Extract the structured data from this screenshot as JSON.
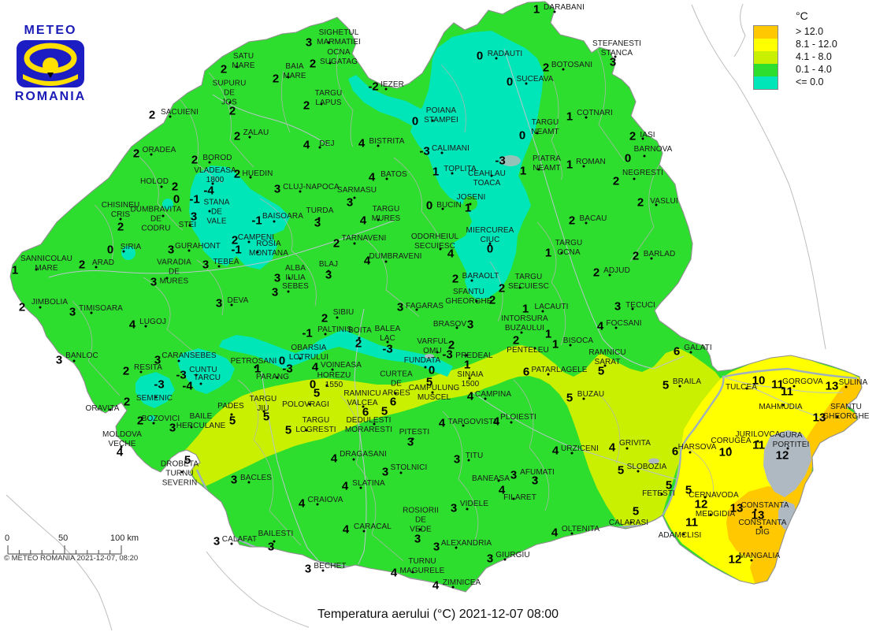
{
  "logo": {
    "top": "METEO",
    "bottom": "ROMANIA"
  },
  "legend": {
    "title": "°C",
    "items": [
      {
        "label": "> 12.0",
        "color": "#FFC800"
      },
      {
        "label": "8.1 - 12.0",
        "color": "#FFFF00"
      },
      {
        "label": "4.1 - 8.0",
        "color": "#C8F000"
      },
      {
        "label": "0.1 - 4.0",
        "color": "#2EDE2E"
      },
      {
        "label": "<= 0.0",
        "color": "#00E6B9"
      }
    ]
  },
  "scalebar": {
    "tick_labels": [
      "0",
      "50",
      "100 km"
    ]
  },
  "copyright": "© METEO ROMANIA 2021-12-07, 08:20",
  "caption": "Temperatura aerului (°C) 2021-12-07 08:00",
  "map": {
    "colors": {
      "green": "#2EDE2E",
      "cyan": "#00E6B9",
      "yellowgreen": "#C8F000",
      "yellow": "#FFFF00",
      "orange": "#FFC800",
      "water": "#AEB9C2"
    },
    "station_fields": [
      "name",
      "temp_c",
      "temp_x",
      "temp_y",
      "label_x",
      "label_y"
    ],
    "stations": [
      [
        "SIGHETUL\nMARMATIEI",
        "3",
        392,
        54,
        430,
        48
      ],
      [
        "OCNA\nSUGATAG",
        "2",
        397,
        81,
        430,
        73
      ],
      [
        "SATU\nMARE",
        "2",
        284,
        88,
        309,
        78
      ],
      [
        "BAIA\nMARE",
        "2",
        350,
        100,
        374,
        91
      ],
      [
        "SUPURU\nDE\nJOS",
        "2",
        295,
        141,
        291,
        118
      ],
      [
        "TARGU\nLAPUS",
        "2",
        389,
        134,
        417,
        125
      ],
      [
        "SACUIENI",
        "2",
        193,
        146,
        228,
        143
      ],
      [
        "ZALAU",
        "2",
        301,
        173,
        325,
        169
      ],
      [
        "DEJ",
        "4",
        389,
        184,
        415,
        183
      ],
      [
        "ORADEA",
        "2",
        173,
        195,
        202,
        191
      ],
      [
        "BOROD",
        "2",
        247,
        203,
        276,
        201
      ],
      [
        "VLADEASA\n1800",
        "-4",
        265,
        242,
        273,
        223
      ],
      [
        "HUEDIN",
        "2",
        301,
        221,
        327,
        221
      ],
      [
        "IEZER",
        "-2",
        474,
        110,
        498,
        108
      ],
      [
        "POIANA\nSTAMPEI",
        "0",
        527,
        154,
        560,
        147
      ],
      [
        "RADAUTI",
        "0",
        609,
        71,
        641,
        69
      ],
      [
        "SUCEAVA",
        "0",
        647,
        104,
        679,
        101
      ],
      [
        "DARABANI",
        "1",
        681,
        12,
        716,
        10
      ],
      [
        "STEFANESTI\nSTANCA",
        "3",
        778,
        79,
        783,
        62
      ],
      [
        "BOTOSANI",
        "2",
        693,
        86,
        726,
        83
      ],
      [
        "COTNARI",
        "1",
        723,
        148,
        755,
        144
      ],
      [
        "TARGU\nNEAMT",
        "0",
        663,
        172,
        692,
        162
      ],
      [
        "IASI",
        "2",
        803,
        173,
        822,
        172
      ],
      [
        "BARNOVA",
        "0",
        797,
        201,
        829,
        190
      ],
      [
        "PIATRA\nNEAMT",
        "1",
        664,
        217,
        694,
        208
      ],
      [
        "ROMAN",
        "1",
        723,
        209,
        750,
        206
      ],
      [
        "NEGRESTI",
        "2",
        782,
        230,
        816,
        220
      ],
      [
        "VASLUI",
        "2",
        813,
        257,
        843,
        256
      ],
      [
        "BISTRITA",
        "4",
        459,
        182,
        491,
        180
      ],
      [
        "CALIMANI",
        "-3",
        539,
        192,
        572,
        189
      ],
      [
        "TOPLITA",
        "1",
        553,
        218,
        584,
        215
      ],
      [
        "CEAHLAU\nTOACA",
        "-3",
        635,
        204,
        618,
        227
      ],
      [
        "JOSENI",
        "1",
        594,
        264,
        598,
        251
      ],
      [
        "BUCIN",
        "0",
        545,
        261,
        570,
        261
      ],
      [
        "BACAU",
        "2",
        726,
        280,
        753,
        278
      ],
      [
        "MIERCUREA\nCIUC",
        "0",
        622,
        316,
        622,
        299
      ],
      [
        "TARGU\nOCNA",
        "1",
        696,
        321,
        722,
        315
      ],
      [
        "ADJUD",
        "2",
        757,
        346,
        783,
        344
      ],
      [
        "BARLAD",
        "2",
        807,
        325,
        837,
        323
      ],
      [
        "HOLOD",
        "2",
        222,
        237,
        196,
        231
      ],
      [
        "DUMBRAVITA\nDE\nCODRU",
        "0",
        224,
        253,
        198,
        278
      ],
      [
        "CHISINEU\nCRIS",
        "2",
        153,
        288,
        153,
        267
      ],
      [
        "STEI",
        "3",
        246,
        275,
        238,
        286
      ],
      [
        "STANA\nDE\nVALE",
        "-1",
        247,
        253,
        275,
        269
      ],
      [
        "SIRIA",
        "0",
        140,
        317,
        166,
        314
      ],
      [
        "ARAD",
        "2",
        104,
        336,
        131,
        334
      ],
      [
        "SANNICOLAU\nMARE",
        "1",
        19,
        343,
        59,
        335
      ],
      [
        "GURAHONT",
        "3",
        217,
        317,
        251,
        313
      ],
      [
        "VARADIA\nDE\nMURES",
        "3",
        195,
        358,
        221,
        345
      ],
      [
        "TEBEA",
        "3",
        261,
        336,
        287,
        333
      ],
      [
        "JIMBOLIA",
        "2",
        28,
        390,
        63,
        384
      ],
      [
        "TIMISOARA",
        "3",
        92,
        396,
        128,
        392
      ],
      [
        "CLUJ-NAPOCA",
        "3",
        352,
        240,
        395,
        238
      ],
      [
        "BATOS",
        "4",
        472,
        225,
        500,
        222
      ],
      [
        "SARMASU",
        "3",
        444,
        257,
        453,
        242
      ],
      [
        "TURDA",
        "3",
        403,
        283,
        406,
        268
      ],
      [
        "TARGU\nMURES",
        "4",
        461,
        280,
        490,
        272
      ],
      [
        "BAISOARA",
        "-1",
        326,
        280,
        359,
        275
      ],
      [
        "CAMPENI",
        "2",
        298,
        305,
        325,
        302
      ],
      [
        "ROSIA\nMONTANA",
        "-1",
        300,
        317,
        341,
        316
      ],
      [
        "TARNAVENI",
        "2",
        427,
        309,
        462,
        303
      ],
      [
        "ODORHEIUL\nSECUIESC",
        "4",
        572,
        322,
        552,
        307
      ],
      [
        "DUMBRAVENI",
        "4",
        466,
        331,
        502,
        326
      ],
      [
        "BLAJ",
        "3",
        417,
        349,
        417,
        336
      ],
      [
        "ALBA\nIULIA",
        "3",
        352,
        353,
        375,
        347
      ],
      [
        "SEBES",
        "3",
        349,
        371,
        375,
        364
      ],
      [
        "DEVA",
        "3",
        278,
        385,
        302,
        382
      ],
      [
        "SIBIU",
        "2",
        412,
        404,
        436,
        397
      ],
      [
        "FAGARAS",
        "3",
        508,
        390,
        539,
        389
      ],
      [
        "BRASOV",
        "3",
        597,
        412,
        571,
        412
      ],
      [
        "BARAOLT",
        "2",
        578,
        354,
        610,
        351
      ],
      [
        "SFANTU\nGHEORGHE",
        "2",
        625,
        381,
        595,
        377
      ],
      [
        "TARGU\nSECUIESC",
        "2",
        637,
        366,
        671,
        358
      ],
      [
        "LACAUTI",
        "1",
        667,
        392,
        700,
        390
      ],
      [
        "TECUCI",
        "3",
        784,
        389,
        813,
        388
      ],
      [
        "FOCSANI",
        "4",
        762,
        414,
        792,
        411
      ],
      [
        "INTORSURA\nBUZAULUI",
        "2",
        655,
        432,
        666,
        411
      ],
      [
        "PENTELEU",
        "1",
        696,
        424,
        670,
        445
      ],
      [
        "BISOCA",
        "1",
        705,
        437,
        734,
        433
      ],
      [
        "RAMNICU\nSARAT",
        "5",
        763,
        471,
        771,
        454
      ],
      [
        "GALATI",
        "6",
        859,
        446,
        886,
        442
      ],
      [
        "BRAILA",
        "5",
        845,
        489,
        872,
        485
      ],
      [
        "LUGOJ",
        "4",
        168,
        412,
        194,
        409
      ],
      [
        "BANLOC",
        "3",
        75,
        457,
        104,
        452
      ],
      [
        "CARANSEBES",
        "3",
        200,
        457,
        240,
        452
      ],
      [
        "RESITA",
        "2",
        160,
        471,
        188,
        467
      ],
      [
        "CUNTU",
        "-3",
        230,
        476,
        258,
        470
      ],
      [
        "TARCU",
        "-4",
        238,
        490,
        263,
        480
      ],
      [
        "SEMENIC",
        "-3",
        202,
        488,
        196,
        506
      ],
      [
        "ORAVITA",
        "2",
        161,
        510,
        130,
        519
      ],
      [
        "BOZOVICI",
        "2",
        178,
        534,
        204,
        532
      ],
      [
        "BAILE\nHERCULANE",
        "3",
        219,
        543,
        255,
        535
      ],
      [
        "MOLDOVA\nVECHE",
        "4",
        152,
        574,
        155,
        558
      ],
      [
        "DROBETA\nTURNU\nSEVERIN",
        "5",
        238,
        584,
        228,
        601
      ],
      [
        "PADES",
        "5",
        295,
        534,
        293,
        516
      ],
      [
        "TARGU\nJIU",
        "5",
        338,
        529,
        334,
        513
      ],
      [
        "POLOVRAGI",
        "5",
        402,
        499,
        388,
        514
      ],
      [
        "TARGU\nLOGRESTI",
        "5",
        366,
        546,
        401,
        540
      ],
      [
        "PETROSANI",
        "1",
        327,
        468,
        322,
        459
      ],
      [
        "PARANG",
        "-3",
        365,
        468,
        346,
        479
      ],
      [
        "OBARSIA\nLOTRULUI",
        "0",
        358,
        458,
        392,
        448
      ],
      [
        "VOINEASA",
        "4",
        400,
        466,
        433,
        464
      ],
      [
        "HOREZU\n1550",
        "0",
        397,
        488,
        424,
        483
      ],
      [
        "PALTINIS",
        "-1",
        390,
        423,
        425,
        419
      ],
      [
        "BOITA",
        "2",
        455,
        436,
        457,
        420
      ],
      [
        "BALEA\nLAC",
        "-3",
        492,
        443,
        492,
        424
      ],
      [
        "VARFUL\nOMU",
        "-3",
        568,
        450,
        549,
        440
      ],
      [
        "PREDEAL",
        "2",
        573,
        438,
        602,
        452
      ],
      [
        "SINAIA\n1500",
        "1",
        593,
        463,
        597,
        482
      ],
      [
        "FUNDATA",
        "0",
        548,
        470,
        536,
        458
      ],
      [
        "CURTEA\nDE\nARGES",
        "6",
        499,
        510,
        503,
        487
      ],
      [
        "CAMPULUNG\nMUSCEL",
        "5",
        545,
        485,
        551,
        499
      ],
      [
        "RAMNICU\nVALCEA",
        "6",
        464,
        523,
        460,
        506
      ],
      [
        "DEDULESTI\nMORARESTI",
        "5",
        488,
        522,
        468,
        540
      ],
      [
        "PITESTI",
        "3",
        521,
        561,
        526,
        549
      ],
      [
        "CAMPINA",
        "4",
        597,
        503,
        626,
        501
      ],
      [
        "TARGOVISTE",
        "4",
        561,
        537,
        601,
        536
      ],
      [
        "PLOIESTI",
        "4",
        630,
        535,
        658,
        530
      ],
      [
        "PATARLAGELE",
        "6",
        668,
        472,
        710,
        470
      ],
      [
        "BUZAU",
        "5",
        723,
        505,
        750,
        501
      ],
      [
        "URZICENI",
        "4",
        705,
        572,
        736,
        570
      ],
      [
        "GRIVITA",
        "4",
        777,
        568,
        806,
        563
      ],
      [
        "SLOBOZIA",
        "5",
        788,
        597,
        821,
        593
      ],
      [
        "TITU",
        "3",
        580,
        583,
        602,
        579
      ],
      [
        "STOLNICI",
        "3",
        489,
        599,
        519,
        594
      ],
      [
        "SLATINA",
        "4",
        438,
        617,
        468,
        614
      ],
      [
        "DRAGASANI",
        "4",
        424,
        582,
        461,
        577
      ],
      [
        "CRAIOVA",
        "4",
        383,
        639,
        413,
        635
      ],
      [
        "CARACAL",
        "4",
        439,
        672,
        473,
        669
      ],
      [
        "BACLES",
        "3",
        297,
        609,
        325,
        607
      ],
      [
        "CALAFAT",
        "3",
        275,
        687,
        304,
        685
      ],
      [
        "BAILESTI",
        "3",
        344,
        694,
        350,
        678
      ],
      [
        "BECHET",
        "3",
        391,
        722,
        419,
        719
      ],
      [
        "ROSIORII\nDE\nVEDE",
        "3",
        530,
        684,
        534,
        660
      ],
      [
        "VIDELE",
        "3",
        576,
        645,
        602,
        640
      ],
      [
        "ALEXANDRIA",
        "3",
        554,
        694,
        592,
        690
      ],
      [
        "TURNU\nMAGURELE",
        "4",
        500,
        727,
        536,
        719
      ],
      [
        "ZIMNICEA",
        "4",
        553,
        743,
        586,
        740
      ],
      [
        "GIURGIU",
        "3",
        622,
        709,
        651,
        705
      ],
      [
        "OLTENITA",
        "4",
        704,
        676,
        737,
        672
      ],
      [
        "BANEASA",
        "3",
        652,
        603,
        623,
        608
      ],
      [
        "AFUMATI",
        "3",
        679,
        610,
        682,
        600
      ],
      [
        "FILARET",
        "4",
        637,
        622,
        660,
        632
      ],
      [
        "FETESTI",
        "5",
        849,
        616,
        836,
        627
      ],
      [
        "CERNAVODA",
        "5",
        874,
        622,
        906,
        629
      ],
      [
        "CALARASI",
        "5",
        807,
        649,
        798,
        664
      ],
      [
        "HARSOVA",
        "6",
        857,
        573,
        885,
        568
      ],
      [
        "CORUGEA",
        "10",
        921,
        574,
        928,
        560
      ],
      [
        "JURILOVCA",
        "11",
        963,
        565,
        962,
        552
      ],
      [
        "GURA\nPORTITEI",
        "12",
        993,
        578,
        1004,
        559
      ],
      [
        "MEDGIDIA",
        "12",
        890,
        640,
        908,
        653
      ],
      [
        "CONSTANTA",
        "13",
        935,
        645,
        971,
        642
      ],
      [
        "CONSTANTA\nDIG",
        "13",
        962,
        654,
        968,
        670
      ],
      [
        "ADAMCLISI",
        "11",
        878,
        663,
        863,
        680
      ],
      [
        "MANGALIA",
        "12",
        933,
        710,
        964,
        706
      ],
      [
        "TULCEA",
        "10",
        963,
        483,
        941,
        492
      ],
      [
        "GORGOVA",
        "11",
        987,
        488,
        1019,
        485
      ],
      [
        "MAHMUDIA",
        "11",
        999,
        497,
        991,
        517
      ],
      [
        "SULINA",
        "13",
        1056,
        490,
        1083,
        486
      ],
      [
        "SFANTU\nGHEORGHE",
        "13",
        1040,
        530,
        1074,
        523
      ]
    ]
  }
}
